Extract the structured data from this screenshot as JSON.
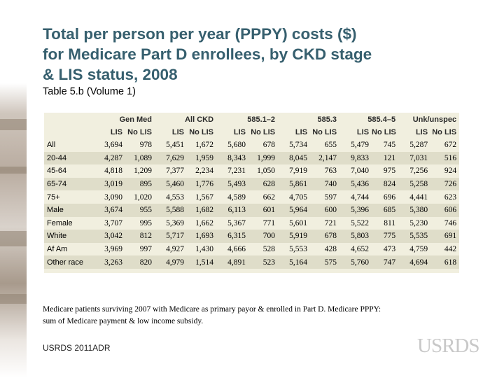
{
  "title_lines": [
    "Total per person per year (PPPY) costs ($)",
    "for Medicare Part D enrollees, by CKD stage",
    "& LIS status, 2008"
  ],
  "subtitle": "Table 5.b (Volume 1)",
  "table": {
    "groups": [
      "Gen Med",
      "All CKD",
      "585.1–2",
      "585.3",
      "585.4–5",
      "Unk/unspec"
    ],
    "columns": [
      "LIS",
      "No LIS",
      "LIS",
      "No LIS",
      "LIS",
      "No LIS",
      "LIS",
      "No LIS",
      "LIS",
      "No LIS",
      "LIS",
      "No LIS"
    ],
    "rows": [
      {
        "label": "All",
        "values": [
          "3,694",
          "978",
          "5,451",
          "1,672",
          "5,680",
          "678",
          "5,734",
          "655",
          "5,479",
          "745",
          "5,287",
          "672"
        ]
      },
      {
        "label": "20-44",
        "values": [
          "4,287",
          "1,089",
          "7,629",
          "1,959",
          "8,343",
          "1,999",
          "8,045",
          "2,147",
          "9,833",
          "121",
          "7,031",
          "516"
        ]
      },
      {
        "label": "45-64",
        "values": [
          "4,818",
          "1,209",
          "7,377",
          "2,234",
          "7,231",
          "1,050",
          "7,919",
          "763",
          "7,040",
          "975",
          "7,256",
          "924"
        ]
      },
      {
        "label": "65-74",
        "values": [
          "3,019",
          "895",
          "5,460",
          "1,776",
          "5,493",
          "628",
          "5,861",
          "740",
          "5,436",
          "824",
          "5,258",
          "726"
        ]
      },
      {
        "label": "75+",
        "values": [
          "3,090",
          "1,020",
          "4,553",
          "1,567",
          "4,589",
          "662",
          "4,705",
          "597",
          "4,744",
          "696",
          "4,441",
          "623"
        ]
      },
      {
        "label": "Male",
        "values": [
          "3,674",
          "955",
          "5,588",
          "1,682",
          "6,113",
          "601",
          "5,964",
          "600",
          "5,396",
          "685",
          "5,380",
          "606"
        ]
      },
      {
        "label": "Female",
        "values": [
          "3,707",
          "995",
          "5,369",
          "1,662",
          "5,367",
          "771",
          "5,601",
          "721",
          "5,522",
          "811",
          "5,230",
          "746"
        ]
      },
      {
        "label": "White",
        "values": [
          "3,042",
          "812",
          "5,717",
          "1,693",
          "6,315",
          "700",
          "5,919",
          "678",
          "5,803",
          "775",
          "5,535",
          "691"
        ]
      },
      {
        "label": "Af Am",
        "values": [
          "3,969",
          "997",
          "4,927",
          "1,430",
          "4,666",
          "528",
          "5,553",
          "428",
          "4,652",
          "473",
          "4,759",
          "442"
        ]
      },
      {
        "label": "Other race",
        "values": [
          "3,263",
          "820",
          "4,979",
          "1,514",
          "4,891",
          "523",
          "5,164",
          "575",
          "5,760",
          "747",
          "4,694",
          "618"
        ]
      }
    ]
  },
  "note_lines": [
    "Medicare patients surviving 2007 with Medicare as primary payor & enrolled in Part D. Medicare PPPY:",
    "sum of Medicare payment & low income subsidy."
  ],
  "footer": "USRDS 2011ADR",
  "logo_text": "USRDS",
  "colors": {
    "title": "#365f6e",
    "table_bg": "#f1efdf",
    "table_band": "#dfddc9",
    "logo": "#c8c8c8"
  }
}
